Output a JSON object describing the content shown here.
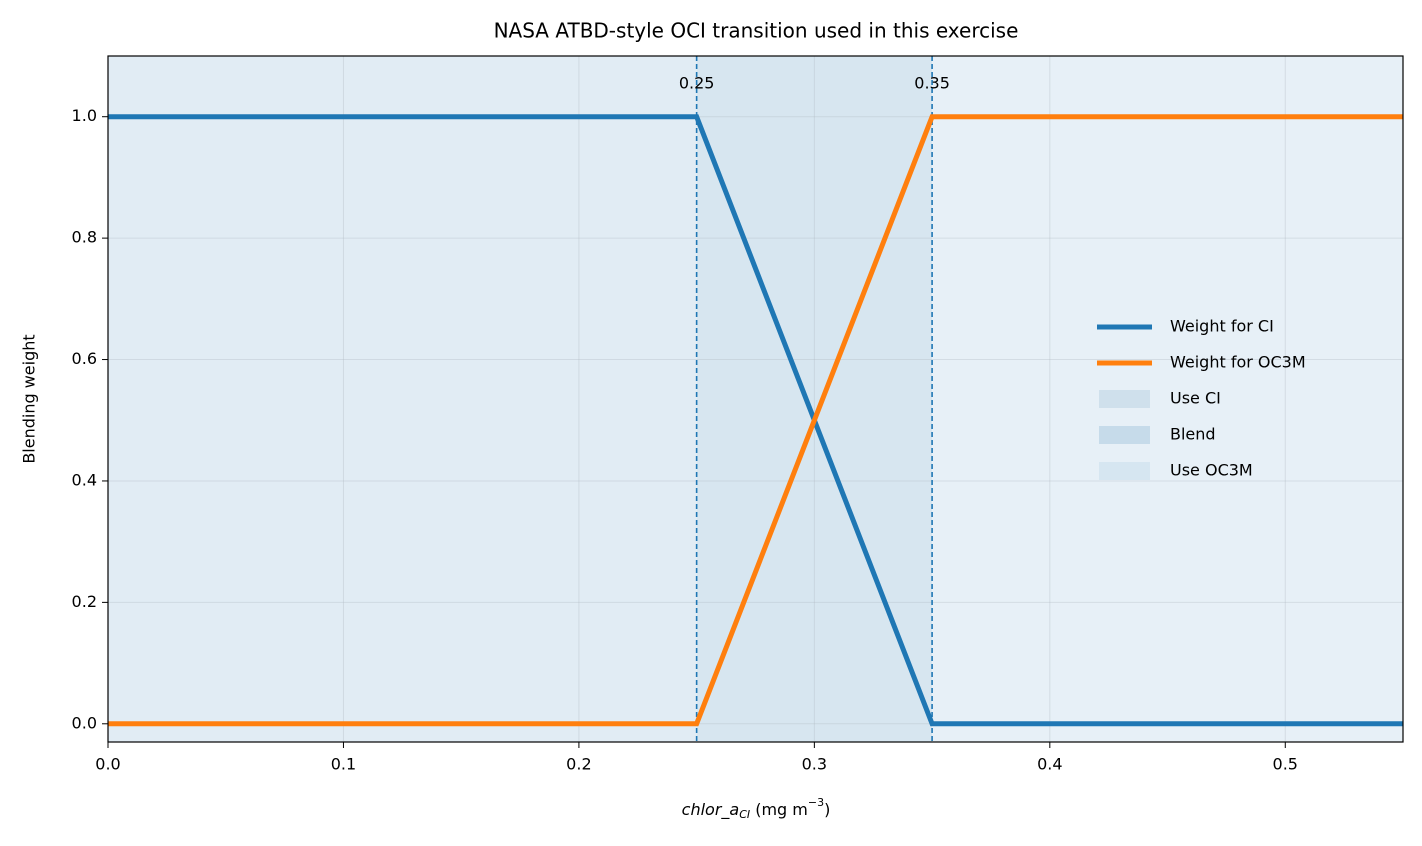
{
  "chart_data": {
    "type": "line",
    "title": "NASA ATBD-style OCI transition used in this exercise",
    "ylabel": "Blending weight",
    "xlabel_parts": [
      {
        "text": "chlor_a",
        "style": "italic"
      },
      {
        "text": "CI",
        "style": "italic-sub"
      },
      {
        "text": " (mg m"
      },
      {
        "text": "−3",
        "style": "sup"
      },
      {
        "text": ")"
      }
    ],
    "x": [
      0,
      0.25,
      0.35,
      0.55
    ],
    "series": [
      {
        "name": "Weight for CI",
        "color": "#1f77b4",
        "values": [
          1,
          1,
          0,
          0
        ]
      },
      {
        "name": "Weight for OC3M",
        "color": "#ff7f0e",
        "values": [
          0,
          0,
          1,
          1
        ]
      }
    ],
    "spans": [
      {
        "name": "Use CI",
        "color": "#e1ecf4",
        "legend_color": "#cfe0ec",
        "range": [
          0,
          0.25
        ]
      },
      {
        "name": "Blend",
        "color": "#d7e6f0",
        "legend_color": "#c6dbea",
        "range": [
          0.25,
          0.35
        ]
      },
      {
        "name": "Use OC3M",
        "color": "#e7f0f7",
        "legend_color": "#d6e6f1",
        "range": [
          0.35,
          0.55
        ]
      }
    ],
    "vlines": [
      0.25,
      0.35
    ],
    "vline_color": "#1f77b4",
    "xlim": [
      0,
      0.55
    ],
    "ylim": [
      -0.03,
      1.1
    ],
    "xticks": [
      {
        "value": 0,
        "label": "0.0"
      },
      0.1,
      0.2,
      0.3,
      0.4,
      0.5
    ],
    "yticks": [
      {
        "value": 0,
        "label": "0.0"
      },
      0.2,
      0.4,
      0.6,
      0.8,
      {
        "value": 1,
        "label": "1.0"
      }
    ],
    "grid": true,
    "legend": "center right"
  }
}
